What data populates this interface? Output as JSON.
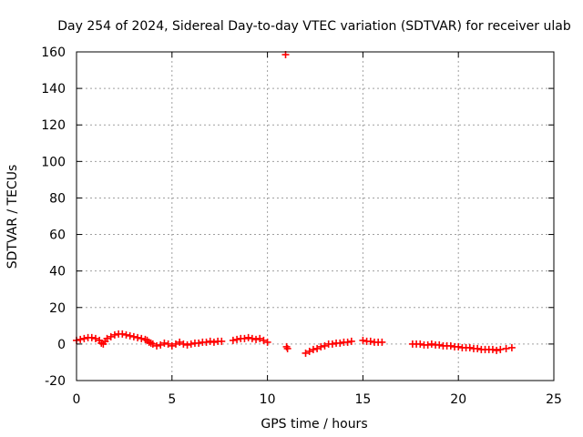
{
  "chart_data": {
    "type": "scatter",
    "title": "Day 254 of 2024, Sidereal Day-to-day VTEC variation (SDTVAR) for receiver ulab",
    "xlabel": "GPS time / hours",
    "ylabel": "SDTVAR / TECUs",
    "xlim": [
      0,
      25
    ],
    "ylim": [
      -20,
      160
    ],
    "xticks": [
      0,
      5,
      10,
      15,
      20,
      25
    ],
    "yticks": [
      -20,
      0,
      20,
      40,
      60,
      80,
      100,
      120,
      140,
      160
    ],
    "xtick_labels": [
      "0",
      "5",
      "10",
      "15",
      "20",
      "25"
    ],
    "ytick_labels": [
      "-20",
      "0",
      "20",
      "40",
      "60",
      "80",
      "100",
      "120",
      "140",
      "160"
    ],
    "grid": true,
    "marker": "+",
    "series": [
      {
        "name": "SDTVAR",
        "color": "#ff0000",
        "x": [
          0.0,
          0.2,
          0.4,
          0.6,
          0.8,
          1.0,
          1.2,
          1.3,
          1.4,
          1.5,
          1.6,
          1.8,
          2.0,
          2.2,
          2.4,
          2.6,
          2.8,
          3.0,
          3.2,
          3.4,
          3.6,
          3.7,
          3.8,
          3.9,
          4.0,
          4.2,
          4.4,
          4.6,
          4.8,
          5.0,
          5.2,
          5.4,
          5.6,
          5.8,
          6.0,
          6.2,
          6.4,
          6.6,
          6.8,
          7.0,
          7.2,
          7.4,
          7.6,
          8.2,
          8.4,
          8.6,
          8.8,
          9.0,
          9.2,
          9.4,
          9.6,
          9.8,
          10.0,
          11.0,
          11.05,
          12.0,
          12.2,
          12.4,
          12.6,
          12.8,
          13.0,
          13.2,
          13.4,
          13.6,
          13.8,
          14.0,
          14.2,
          14.4,
          15.0,
          15.2,
          15.4,
          15.6,
          15.8,
          16.0,
          17.6,
          17.8,
          18.0,
          18.2,
          18.4,
          18.6,
          18.8,
          19.0,
          19.2,
          19.4,
          19.6,
          19.8,
          20.0,
          20.2,
          20.4,
          20.6,
          20.8,
          21.0,
          21.2,
          21.4,
          21.6,
          21.8,
          22.0,
          22.2,
          22.5,
          22.8,
          10.95
        ],
        "y": [
          2.0,
          2.5,
          3.0,
          3.5,
          3.5,
          3.0,
          2.0,
          0.5,
          0.0,
          1.5,
          3.0,
          4.0,
          5.0,
          5.5,
          5.5,
          5.0,
          4.5,
          4.0,
          3.5,
          3.0,
          2.5,
          2.0,
          1.0,
          0.5,
          0.0,
          -1.0,
          -0.5,
          0.5,
          0.0,
          -1.0,
          0.0,
          1.0,
          0.0,
          -0.5,
          0.0,
          0.5,
          0.5,
          1.0,
          1.0,
          1.5,
          1.0,
          1.5,
          1.5,
          2.0,
          2.5,
          3.0,
          3.0,
          3.5,
          3.0,
          2.5,
          3.0,
          2.0,
          1.0,
          -1.5,
          -2.5,
          -5.0,
          -4.0,
          -3.0,
          -2.5,
          -1.5,
          -1.0,
          0.0,
          0.0,
          0.5,
          0.5,
          1.0,
          1.0,
          1.5,
          2.0,
          1.5,
          1.5,
          1.0,
          1.0,
          1.0,
          0.0,
          0.0,
          0.0,
          -0.5,
          -0.5,
          0.0,
          -0.5,
          -0.5,
          -1.0,
          -1.0,
          -1.0,
          -1.5,
          -1.5,
          -2.0,
          -2.0,
          -2.0,
          -2.5,
          -2.5,
          -3.0,
          -3.0,
          -3.0,
          -3.0,
          -3.5,
          -3.0,
          -2.5,
          -2.0,
          158.5
        ]
      }
    ]
  }
}
